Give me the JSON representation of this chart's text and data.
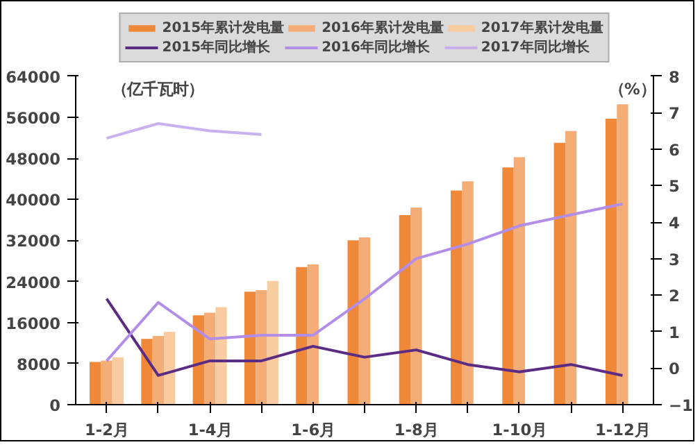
{
  "chart_data": {
    "type": "bar",
    "categories": [
      "1-2月",
      null,
      "1-4月",
      null,
      "1-6月",
      null,
      "1-8月",
      null,
      "1-10月",
      null,
      "1-12月"
    ],
    "series": [
      {
        "name": "2015年累计发电量",
        "color": "#f0883a",
        "values": [
          8300,
          12800,
          17400,
          22000,
          26800,
          32000,
          36900,
          41700,
          46200,
          51000,
          55700
        ]
      },
      {
        "name": "2016年累计发电量",
        "color": "#f5ad78",
        "values": [
          8600,
          13400,
          17900,
          22300,
          27300,
          32600,
          38400,
          43500,
          48200,
          53300,
          58500
        ]
      },
      {
        "name": "2017年累计发电量",
        "color": "#f9cba0",
        "values": [
          9200,
          14200,
          19000,
          24100,
          null,
          null,
          null,
          null,
          null,
          null,
          null
        ]
      },
      {
        "name": "2015年同比增长",
        "type": "line",
        "axis": "y2",
        "color": "#5b2c83",
        "values": [
          1.9,
          -0.2,
          0.2,
          0.2,
          0.6,
          0.3,
          0.5,
          0.1,
          -0.1,
          0.1,
          -0.2
        ]
      },
      {
        "name": "2016年同比增长",
        "type": "line",
        "axis": "y2",
        "color": "#b38ee8",
        "values": [
          0.2,
          1.8,
          0.8,
          0.9,
          0.9,
          1.9,
          3.0,
          3.4,
          3.9,
          4.2,
          4.5
        ]
      },
      {
        "name": "2017年同比增长",
        "type": "line",
        "axis": "y2",
        "color": "#c9b0ee",
        "values": [
          6.3,
          6.7,
          6.5,
          6.4,
          null,
          null,
          null,
          null,
          null,
          null,
          null
        ]
      }
    ],
    "ylim": [
      0,
      64000
    ],
    "yticks": [
      0,
      8000,
      16000,
      24000,
      32000,
      40000,
      48000,
      56000,
      64000
    ],
    "y2lim": [
      -1,
      8
    ],
    "y2ticks": [
      -1,
      0,
      1,
      2,
      3,
      4,
      5,
      6,
      7,
      8
    ],
    "annotations": [
      "（亿千瓦时）",
      "（%）"
    ],
    "grid": false,
    "legend": "top",
    "line_style": "solid",
    "marker": "none"
  }
}
